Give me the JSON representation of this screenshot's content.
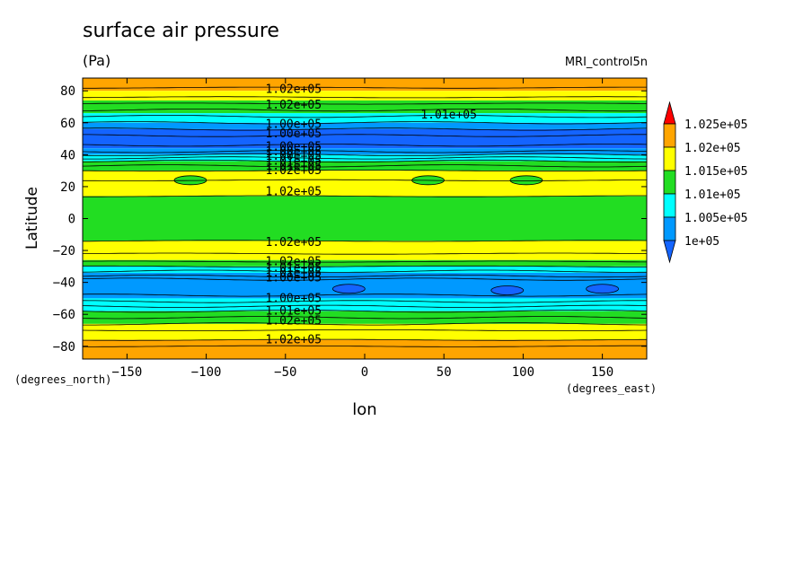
{
  "chart_data": {
    "type": "heatmap",
    "title": "surface air pressure",
    "units": "(Pa)",
    "model": "MRI_control5n",
    "xlabel": "lon",
    "ylabel": "Latitude",
    "x_units": "(degrees_east)",
    "y_units": "(degrees_north)",
    "xlim": [
      -178,
      178
    ],
    "ylim": [
      -88,
      88
    ],
    "x_ticks": [
      -150,
      -100,
      -50,
      0,
      50,
      100,
      150
    ],
    "y_ticks": [
      -80,
      -60,
      -40,
      -20,
      0,
      20,
      40,
      60,
      80
    ],
    "legend": {
      "position": "right",
      "levels": [
        "1.025e+05",
        "1.02e+05",
        "1.015e+05",
        "1.01e+05",
        "1.005e+05",
        "1e+05"
      ],
      "colors": {
        "above_1025": "#ff0000",
        "1020_1025": "#ffa500",
        "1015_1020": "#ffff00",
        "1010_1015": "#22dd22",
        "1005_1010": "#00ffff",
        "1000_1005": "#0099ff",
        "below_1000": "#1464ff"
      }
    },
    "latitude_bands": [
      {
        "lat": [
          80,
          88
        ],
        "class": "1020_1025"
      },
      {
        "lat": [
          74,
          80
        ],
        "class": "1015_1020"
      },
      {
        "lat": [
          66,
          74
        ],
        "class": "1010_1015"
      },
      {
        "lat": [
          60,
          66
        ],
        "class": "1005_1010"
      },
      {
        "lat": [
          56,
          60
        ],
        "class": "1000_1005"
      },
      {
        "lat": [
          44,
          56
        ],
        "class": "below_1000"
      },
      {
        "lat": [
          40,
          44
        ],
        "class": "1000_1005"
      },
      {
        "lat": [
          36,
          40
        ],
        "class": "1005_1010"
      },
      {
        "lat": [
          30,
          36
        ],
        "class": "1010_1015"
      },
      {
        "lat": [
          14,
          30
        ],
        "class": "1015_1020"
      },
      {
        "lat": [
          -14,
          14
        ],
        "class": "1010_1015"
      },
      {
        "lat": [
          -26,
          -14
        ],
        "class": "1015_1020"
      },
      {
        "lat": [
          -30,
          -26
        ],
        "class": "1010_1015"
      },
      {
        "lat": [
          -34,
          -30
        ],
        "class": "1005_1010"
      },
      {
        "lat": [
          -50,
          -34
        ],
        "class": "1000_1005"
      },
      {
        "lat": [
          -58,
          -50
        ],
        "class": "1005_1010"
      },
      {
        "lat": [
          -66,
          -58
        ],
        "class": "1010_1015"
      },
      {
        "lat": [
          -76,
          -66
        ],
        "class": "1015_1020"
      },
      {
        "lat": [
          -88,
          -76
        ],
        "class": "1020_1025"
      }
    ],
    "contour_lines_lat": [
      82,
      76,
      72,
      68,
      64,
      60,
      56,
      52,
      46,
      42,
      40,
      38,
      36,
      33,
      30,
      24,
      14,
      -14,
      -22,
      -27,
      -30,
      -33,
      -36,
      -38,
      -48,
      -52,
      -55,
      -58,
      -62,
      -66,
      -70,
      -76,
      -80
    ],
    "contour_labels": [
      {
        "text": "1.02e+05",
        "lon": -40,
        "lat": 81
      },
      {
        "text": "1.02e+05",
        "lon": -40,
        "lat": 71
      },
      {
        "text": "1.01e+05",
        "lon": 58,
        "lat": 65
      },
      {
        "text": "1.00e+05",
        "lon": -40,
        "lat": 59
      },
      {
        "text": "1.00e+05",
        "lon": -40,
        "lat": 53
      },
      {
        "text": "1.00e+05",
        "lon": -40,
        "lat": 45
      },
      {
        "text": "1.00e+05",
        "lon": -40,
        "lat": 42
      },
      {
        "text": "1.00e+05",
        "lon": -40,
        "lat": 39
      },
      {
        "text": "1.01e+05",
        "lon": -40,
        "lat": 36
      },
      {
        "text": "1.01e+05",
        "lon": -40,
        "lat": 33
      },
      {
        "text": "1.02e+05",
        "lon": -40,
        "lat": 30
      },
      {
        "text": "1.02e+05",
        "lon": -40,
        "lat": 17
      },
      {
        "text": "1.02e+05",
        "lon": -40,
        "lat": -15
      },
      {
        "text": "1.02e+05",
        "lon": -40,
        "lat": -27
      },
      {
        "text": "1.01e+05",
        "lon": -40,
        "lat": -31
      },
      {
        "text": "1.01e+05",
        "lon": -40,
        "lat": -34
      },
      {
        "text": "1.00e+05",
        "lon": -40,
        "lat": -37
      },
      {
        "text": "1.00e+05",
        "lon": -40,
        "lat": -50
      },
      {
        "text": "1.01e+05",
        "lon": -40,
        "lat": -58
      },
      {
        "text": "1.02e+05",
        "lon": -40,
        "lat": -64
      },
      {
        "text": "1.02e+05",
        "lon": -40,
        "lat": -76
      }
    ],
    "closed_cells": [
      {
        "lon": -110,
        "lat": 24,
        "class": "1010_1015"
      },
      {
        "lon": 40,
        "lat": 24,
        "class": "1010_1015"
      },
      {
        "lon": 102,
        "lat": 24,
        "class": "1010_1015"
      },
      {
        "lon": -10,
        "lat": -44,
        "class": "below_1000"
      },
      {
        "lon": 90,
        "lat": -45,
        "class": "below_1000"
      },
      {
        "lon": 150,
        "lat": -44,
        "class": "below_1000"
      }
    ]
  }
}
